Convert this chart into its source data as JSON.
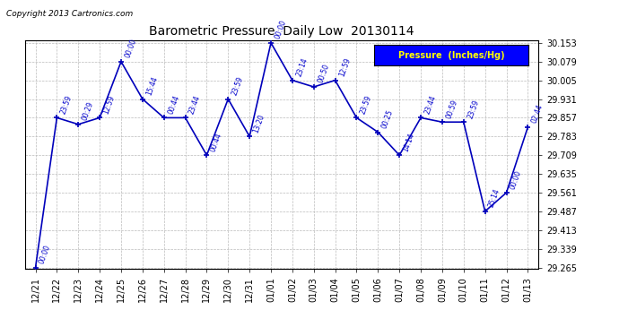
{
  "title": "Barometric Pressure  Daily Low  20130114",
  "copyright": "Copyright 2013 Cartronics.com",
  "legend_label": "Pressure  (Inches/Hg)",
  "x_labels": [
    "12/21",
    "12/22",
    "12/23",
    "12/24",
    "12/25",
    "12/26",
    "12/27",
    "12/28",
    "12/29",
    "12/30",
    "12/31",
    "01/01",
    "01/02",
    "01/03",
    "01/04",
    "01/05",
    "01/06",
    "01/07",
    "01/08",
    "01/09",
    "01/10",
    "01/11",
    "01/12",
    "01/13"
  ],
  "y_values": [
    29.265,
    29.857,
    29.831,
    29.857,
    30.079,
    29.931,
    29.857,
    29.857,
    29.709,
    29.931,
    29.783,
    30.153,
    30.005,
    29.979,
    30.005,
    29.857,
    29.8,
    29.709,
    29.857,
    29.84,
    29.84,
    29.487,
    29.561,
    29.82
  ],
  "time_labels": [
    "00:00",
    "23:59",
    "00:29",
    "12:59",
    "00:00",
    "15:44",
    "00:44",
    "23:44",
    "00:44",
    "23:59",
    "13:20",
    "00:00",
    "23:14",
    "00:50",
    "12:59",
    "23:59",
    "00:25",
    "14:14",
    "23:44",
    "00:59",
    "23:59",
    "25:14",
    "00:00",
    "02:44"
  ],
  "y_min": 29.265,
  "y_max": 30.153,
  "y_ticks": [
    29.265,
    29.339,
    29.413,
    29.487,
    29.561,
    29.635,
    29.709,
    29.783,
    29.857,
    29.931,
    30.005,
    30.079,
    30.153
  ],
  "line_color": "#0000bb",
  "bg_color": "#ffffff",
  "grid_color": "#bbbbbb",
  "title_color": "#000000",
  "label_color": "#0000cc",
  "legend_bg": "#0000ff",
  "legend_text_color": "#ffff00"
}
